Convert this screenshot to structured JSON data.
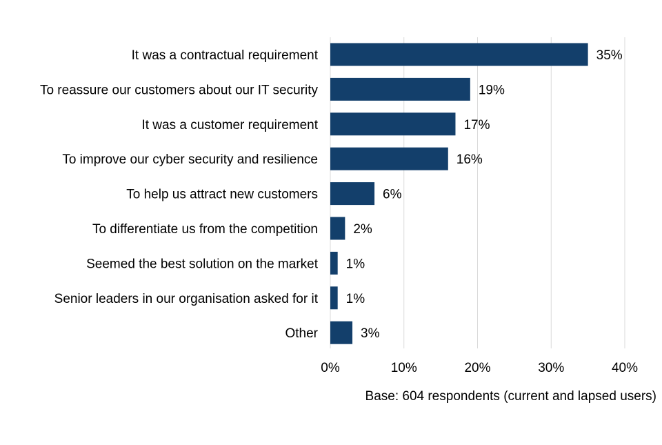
{
  "chart_data": {
    "type": "bar",
    "orientation": "horizontal",
    "title": "",
    "xlabel": "",
    "ylabel": "",
    "categories": [
      "It was a contractual requirement",
      "To reassure our customers about our IT security",
      "It was a customer requirement",
      "To improve our cyber security and resilience",
      "To help us attract new customers",
      "To differentiate us from the competition",
      "Seemed the best solution on the market",
      "Senior leaders in our organisation asked for it",
      "Other"
    ],
    "values": [
      35,
      19,
      17,
      16,
      6,
      2,
      1,
      1,
      3
    ],
    "value_labels": [
      "35%",
      "19%",
      "17%",
      "16%",
      "6%",
      "2%",
      "1%",
      "1%",
      "3%"
    ],
    "xlim": [
      0,
      40
    ],
    "x_ticks": [
      0,
      10,
      20,
      30,
      40
    ],
    "x_tick_labels": [
      "0%",
      "10%",
      "20%",
      "30%",
      "40%"
    ],
    "grid": "vertical",
    "legend": "none",
    "bar_color": "#133f6b",
    "grid_color": "#d9d9d9",
    "note": "Base: 604 respondents (current and lapsed users)"
  }
}
